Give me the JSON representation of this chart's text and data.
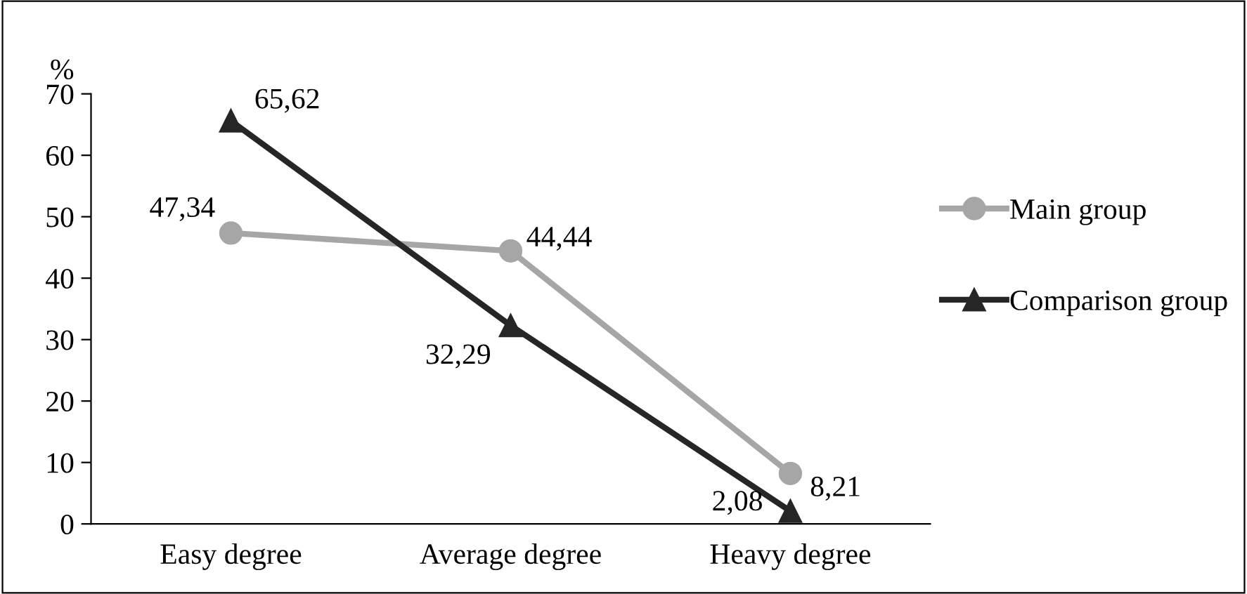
{
  "chart_data": {
    "type": "line",
    "ylabel": "%",
    "categories": [
      "Easy degree",
      "Average degree",
      "Heavy degree"
    ],
    "series": [
      {
        "name": "Main group",
        "color": "#a6a6a6",
        "marker": "circle",
        "values": [
          47.34,
          44.44,
          8.21
        ],
        "value_labels": [
          "47,34",
          "44,44",
          "8,21"
        ]
      },
      {
        "name": "Comparison group",
        "color": "#262626",
        "marker": "triangle",
        "values": [
          65.62,
          32.29,
          2.08
        ],
        "value_labels": [
          "65,62",
          "32,29",
          "2,08"
        ]
      }
    ],
    "ylim": [
      0,
      70
    ],
    "yticks": [
      0,
      10,
      20,
      30,
      40,
      50,
      60,
      70
    ],
    "grid": false,
    "legend": "right",
    "line_style": "solid"
  }
}
